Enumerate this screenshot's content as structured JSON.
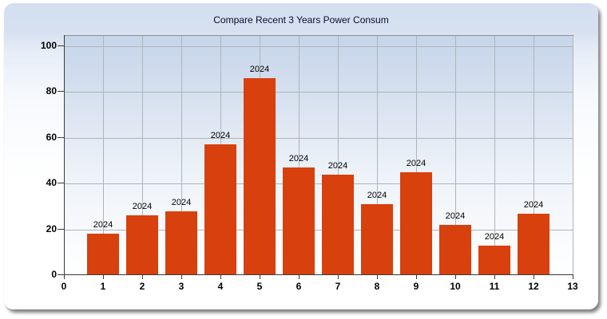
{
  "window": {
    "title": "Compare Recent 3 Years Power Consum"
  },
  "chart_data": {
    "type": "bar",
    "title": "Compare Recent 3 Years Power Consum",
    "categories": [
      1,
      2,
      3,
      4,
      5,
      6,
      7,
      8,
      9,
      10,
      11,
      12
    ],
    "series": [
      {
        "name": "2024",
        "values": [
          18,
          26,
          28,
          57,
          86,
          47,
          44,
          31,
          45,
          22,
          13,
          27
        ]
      }
    ],
    "point_label": "2024",
    "xlabel": "",
    "ylabel": "",
    "xlim": [
      0,
      13
    ],
    "ylim": [
      0,
      100
    ],
    "x_ticks": [
      0,
      1,
      2,
      3,
      4,
      5,
      6,
      7,
      8,
      9,
      10,
      11,
      12,
      13
    ],
    "y_ticks": [
      0,
      20,
      40,
      60,
      80,
      100
    ],
    "grid": true,
    "legend": "none",
    "bar_color": "#d8400e",
    "title_color": "#0c0c35",
    "header_color": "#d3dff0"
  }
}
